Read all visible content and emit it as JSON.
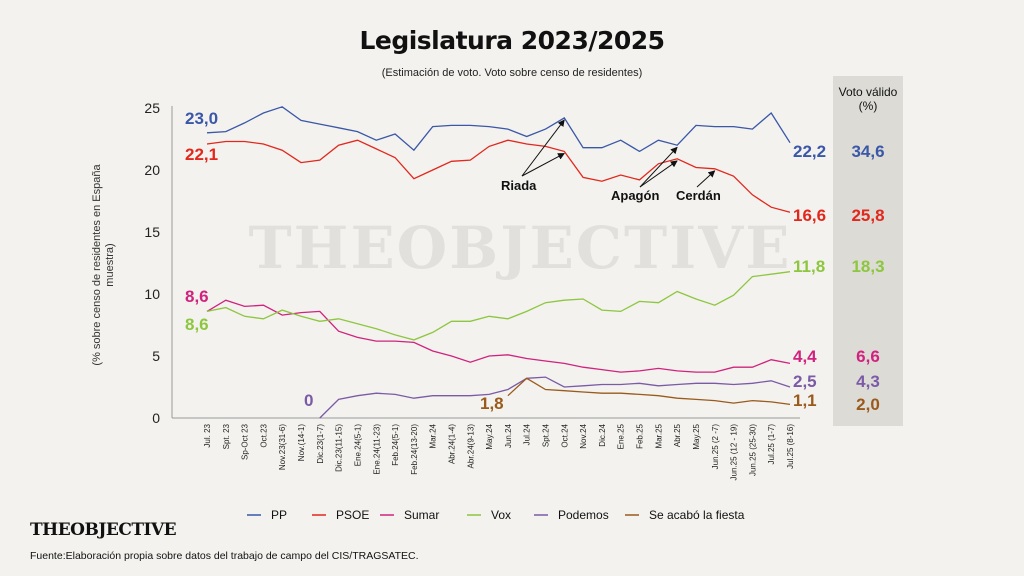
{
  "title": "Legislatura 2023/2025",
  "subtitle": "(Estimación de voto. Voto sobre censo de residentes)",
  "logo": "THEOBJECTIVE",
  "watermark": "THEOBJECTIVE",
  "source": "Fuente:Elaboración propia sobre datos del trabajo de campo del CIS/TRAGSATEC.",
  "valid_vote_header": [
    "Voto válido",
    "(%)"
  ],
  "chart_data": {
    "type": "line",
    "ylabel": "(% sobre censo de residentes en España muestra)",
    "ylim": [
      0,
      25
    ],
    "yticks": [
      0,
      5,
      10,
      15,
      20,
      25
    ],
    "grid": false,
    "legend_position": "bottom",
    "categories": [
      "Jul. 23",
      "Spt. 23",
      "Sp-Oct 23",
      "Oct.23",
      "Nov.23(31-6)",
      "Nov.(14-1)",
      "Dic.23(1-7)",
      "Dic.23(11-15)",
      "Ene.24(5-1)",
      "Ene.24(11-23)",
      "Feb.24(5-1)",
      "Feb.24(13-20)",
      "Mar.24",
      "Abr.24(1-4)",
      "Abr.24(9-13)",
      "May.24",
      "Jun.24",
      "Jul.24",
      "Spt.24",
      "Oct.24",
      "Nov.24",
      "Dic.24",
      "Ene.25",
      "Feb.25",
      "Mar.25",
      "Abr.25",
      "May.25",
      "Jun.25 (2 -7)",
      "Jun.25 (12 - 19)",
      "Jun.25 (25-30)",
      "Jul.25 (1-7)",
      "Jul.25 (8-16)"
    ],
    "series": [
      {
        "name": "PP",
        "color": "#3a57a8",
        "values": [
          23.0,
          23.1,
          23.8,
          24.6,
          25.1,
          24.0,
          23.7,
          23.4,
          23.1,
          22.4,
          22.9,
          21.6,
          23.5,
          23.6,
          23.6,
          23.5,
          23.3,
          22.7,
          23.3,
          24.2,
          21.8,
          21.8,
          22.4,
          21.5,
          22.4,
          22.0,
          23.6,
          23.5,
          23.5,
          23.3,
          24.6,
          22.2
        ],
        "start_label": "23,0",
        "end_label": "22,2",
        "valid_vote": "34,6"
      },
      {
        "name": "PSOE",
        "color": "#e2271d",
        "values": [
          22.1,
          22.3,
          22.3,
          22.1,
          21.6,
          20.6,
          20.8,
          22.0,
          22.4,
          21.7,
          21.0,
          19.3,
          20.0,
          20.7,
          20.8,
          21.9,
          22.4,
          22.1,
          21.9,
          21.5,
          19.4,
          19.1,
          19.6,
          19.2,
          20.5,
          20.9,
          20.2,
          20.1,
          19.5,
          18.0,
          17.0,
          16.6
        ],
        "start_label": "22,1",
        "end_label": "16,6",
        "valid_vote": "25,8"
      },
      {
        "name": "Sumar",
        "color": "#d0227e",
        "values": [
          8.6,
          9.5,
          9.0,
          9.1,
          8.3,
          8.5,
          8.6,
          7.0,
          6.5,
          6.2,
          6.2,
          6.1,
          5.4,
          5.0,
          4.5,
          5.0,
          5.1,
          4.8,
          4.6,
          4.4,
          4.1,
          3.9,
          3.7,
          3.8,
          4.0,
          3.8,
          3.7,
          3.7,
          4.1,
          4.1,
          4.7,
          4.4
        ],
        "start_label": "8,6",
        "end_label": "4,4",
        "valid_vote": "6,6"
      },
      {
        "name": "Vox",
        "color": "#8dc63f",
        "values": [
          8.6,
          8.9,
          8.2,
          8.0,
          8.7,
          8.2,
          7.8,
          8.0,
          7.6,
          7.2,
          6.7,
          6.3,
          6.9,
          7.8,
          7.8,
          8.2,
          8.0,
          8.6,
          9.3,
          9.5,
          9.6,
          8.7,
          8.6,
          9.4,
          9.3,
          10.2,
          9.6,
          9.1,
          9.9,
          11.4,
          11.6,
          11.8
        ],
        "start_label": "8,6",
        "end_label": "11,8",
        "valid_vote": "18,3"
      },
      {
        "name": "Podemos",
        "color": "#7b5aa6",
        "values": [
          null,
          null,
          null,
          null,
          null,
          null,
          0,
          1.5,
          1.8,
          2.0,
          1.9,
          1.6,
          1.8,
          1.8,
          1.8,
          1.9,
          2.3,
          3.2,
          3.3,
          2.5,
          2.6,
          2.7,
          2.7,
          2.8,
          2.6,
          2.7,
          2.8,
          2.8,
          2.7,
          2.8,
          3.0,
          2.5
        ],
        "start_label": "0",
        "end_label": "2,5",
        "valid_vote": "4,3"
      },
      {
        "name": "Se acabó la fiesta",
        "color": "#9a5a1c",
        "values": [
          null,
          null,
          null,
          null,
          null,
          null,
          null,
          null,
          null,
          null,
          null,
          null,
          null,
          null,
          null,
          null,
          1.8,
          3.2,
          2.3,
          2.2,
          2.1,
          2.0,
          2.0,
          1.9,
          1.8,
          1.6,
          1.5,
          1.4,
          1.2,
          1.4,
          1.3,
          1.1
        ],
        "start_label": "1,8",
        "end_label": "1,1",
        "valid_vote": "2,0"
      }
    ],
    "annotations": [
      {
        "text": "Riada",
        "series": "PP",
        "index": 19,
        "series2": "PSOE",
        "index2": 19
      },
      {
        "text": "Apagón",
        "series": "PP",
        "index": 25,
        "series2": "PSOE",
        "index2": 25
      },
      {
        "text": "Cerdán",
        "series": "PSOE",
        "index": 27
      }
    ]
  }
}
